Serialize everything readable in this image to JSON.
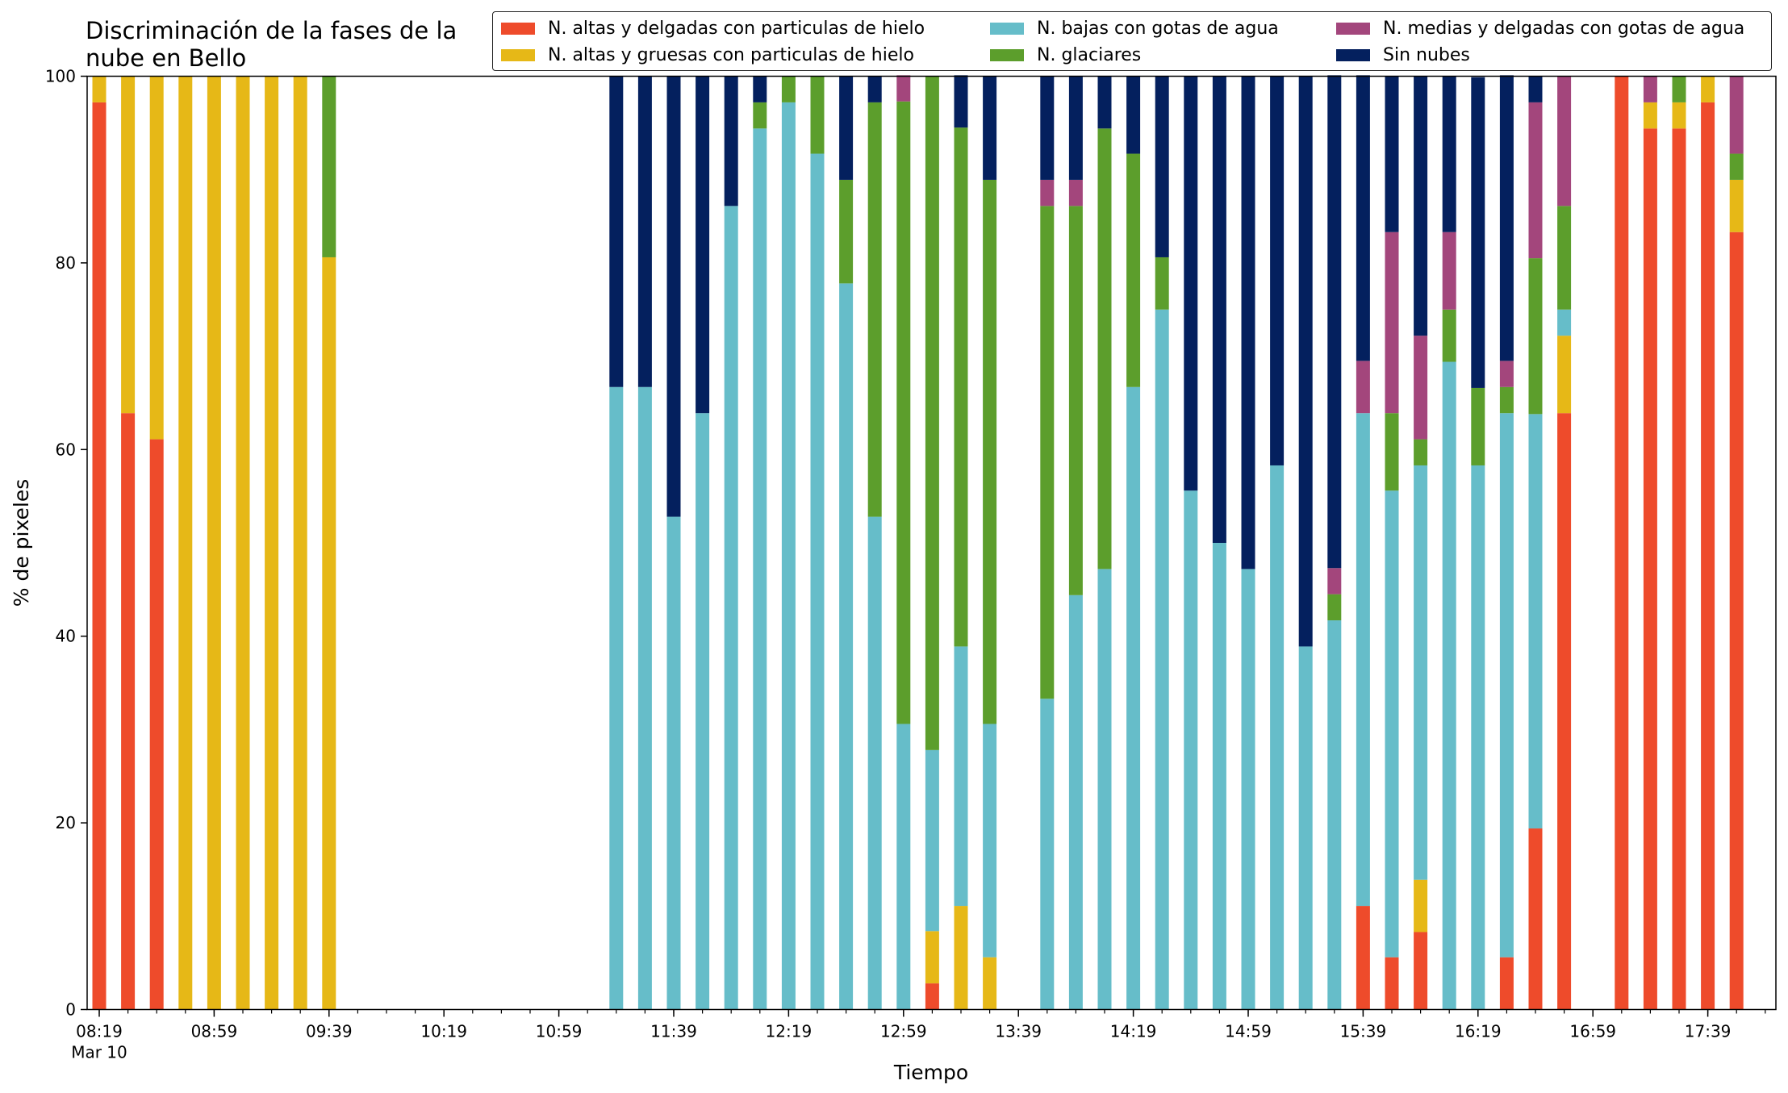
{
  "colors": {
    "hielo_delgadas": "#ee4b2b",
    "hielo_gruesas": "#e6b817",
    "bajas_agua": "#66bdc9",
    "glaciares": "#5c9e2c",
    "medias_agua": "#a3467c",
    "sin_nubes": "#04205e"
  },
  "chart_data": {
    "type": "bar",
    "stacked": true,
    "title": "Discriminación de la fases de la nube en Bello",
    "title_lines": [
      "Discriminación de la fases de la",
      "nube en Bello"
    ],
    "xlabel": "Tiempo",
    "ylabel": "% de pixeles",
    "ylim": [
      0,
      100
    ],
    "yticks": [
      "0",
      "20",
      "40",
      "60",
      "80",
      "100"
    ],
    "x_range": [
      "08:19",
      "17:59"
    ],
    "x_interval_minutes": 10,
    "x_tick_labels": [
      "08:19",
      "08:59",
      "09:39",
      "10:19",
      "10:59",
      "11:39",
      "12:19",
      "12:59",
      "13:39",
      "14:19",
      "14:59",
      "15:39",
      "16:19",
      "16:59",
      "17:39"
    ],
    "x_date_label": "Mar 10",
    "legend_position": "top-right",
    "grid": false,
    "categories": [
      "08:19",
      "08:29",
      "08:39",
      "08:49",
      "08:59",
      "09:09",
      "09:19",
      "09:29",
      "09:39",
      "09:49",
      "09:59",
      "10:09",
      "10:19",
      "10:29",
      "10:39",
      "10:49",
      "10:59",
      "11:09",
      "11:19",
      "11:29",
      "11:39",
      "11:49",
      "11:59",
      "12:09",
      "12:19",
      "12:29",
      "12:39",
      "12:49",
      "12:59",
      "13:09",
      "13:19",
      "13:29",
      "13:39",
      "13:49",
      "13:59",
      "14:09",
      "14:19",
      "14:29",
      "14:39",
      "14:49",
      "14:59",
      "15:09",
      "15:19",
      "15:29",
      "15:39",
      "15:49",
      "15:59",
      "16:09",
      "16:19",
      "16:29",
      "16:39",
      "16:49",
      "16:59",
      "17:09",
      "17:19",
      "17:29",
      "17:39",
      "17:49"
    ],
    "series": [
      {
        "name": "N. altas y delgadas con particulas de hielo",
        "color_key": "hielo_delgadas",
        "values": [
          97.2,
          63.9,
          61.1,
          0,
          0,
          0,
          0,
          0,
          0,
          0,
          0,
          0,
          0,
          0,
          0,
          0,
          0,
          0,
          0,
          0,
          0,
          0,
          0,
          0,
          0,
          0,
          0,
          0,
          0,
          2.8,
          0,
          0,
          0,
          0,
          0,
          0,
          0,
          0,
          0,
          0,
          0,
          0,
          0,
          0,
          11.1,
          5.6,
          8.3,
          0,
          0,
          5.6,
          19.4,
          63.9,
          0,
          100,
          94.4,
          94.4,
          97.2,
          83.3
        ]
      },
      {
        "name": "N. altas y gruesas con particulas de hielo",
        "color_key": "hielo_gruesas",
        "values": [
          2.8,
          36.1,
          38.9,
          100,
          100,
          100,
          100,
          100,
          80.6,
          0,
          0,
          0,
          0,
          0,
          0,
          0,
          0,
          0,
          0,
          0,
          0,
          0,
          0,
          0,
          0,
          0,
          0,
          0,
          0,
          5.6,
          11.1,
          5.6,
          0,
          0,
          0,
          0,
          0,
          0,
          0,
          0,
          0,
          0,
          0,
          0,
          0,
          0,
          5.6,
          0,
          0,
          0,
          0,
          8.3,
          0,
          0,
          2.8,
          2.8,
          2.8,
          5.6
        ]
      },
      {
        "name": "N. bajas con gotas de agua",
        "color_key": "bajas_agua",
        "values": [
          0,
          0,
          0,
          0,
          0,
          0,
          0,
          0,
          0,
          0,
          0,
          0,
          0,
          0,
          0,
          0,
          0,
          0,
          66.7,
          66.7,
          52.8,
          63.9,
          86.1,
          94.4,
          97.2,
          91.7,
          77.8,
          52.8,
          30.6,
          19.4,
          27.8,
          25.0,
          0,
          33.3,
          44.4,
          47.2,
          66.7,
          75.0,
          55.6,
          50.0,
          47.2,
          58.3,
          38.9,
          41.7,
          52.8,
          50.0,
          44.4,
          69.4,
          58.3,
          58.3,
          44.4,
          2.8,
          0,
          0,
          0,
          0,
          0,
          0
        ]
      },
      {
        "name": "N. glaciares",
        "color_key": "glaciares",
        "values": [
          0,
          0,
          0,
          0,
          0,
          0,
          0,
          0,
          19.4,
          0,
          0,
          0,
          0,
          0,
          0,
          0,
          0,
          0,
          0,
          0,
          0,
          0,
          0,
          2.8,
          2.8,
          8.3,
          11.1,
          44.4,
          66.7,
          72.2,
          55.6,
          58.3,
          0,
          52.8,
          41.7,
          47.2,
          25.0,
          5.6,
          0,
          0,
          0,
          0,
          0,
          2.8,
          0,
          8.3,
          2.8,
          5.6,
          8.3,
          2.8,
          16.7,
          11.1,
          0,
          0,
          0,
          2.8,
          0,
          2.8
        ]
      },
      {
        "name": "N. medias y delgadas con gotas de agua",
        "color_key": "medias_agua",
        "values": [
          0,
          0,
          0,
          0,
          0,
          0,
          0,
          0,
          0,
          0,
          0,
          0,
          0,
          0,
          0,
          0,
          0,
          0,
          0,
          0,
          0,
          0,
          0,
          0,
          0,
          0,
          0,
          0,
          2.8,
          0,
          0,
          0,
          0,
          2.8,
          2.8,
          0,
          0,
          0,
          0,
          0,
          0,
          0,
          0,
          2.8,
          5.6,
          19.4,
          11.1,
          8.3,
          0,
          2.8,
          16.7,
          13.9,
          0,
          0,
          2.8,
          0,
          0,
          8.3
        ]
      },
      {
        "name": "Sin nubes",
        "color_key": "sin_nubes",
        "values": [
          0,
          0,
          0,
          0,
          0,
          0,
          0,
          0,
          0,
          0,
          0,
          0,
          0,
          0,
          0,
          0,
          0,
          0,
          33.3,
          33.3,
          47.2,
          36.1,
          13.9,
          2.8,
          0,
          0,
          11.1,
          2.8,
          0,
          0,
          5.6,
          11.1,
          0,
          11.1,
          11.1,
          5.6,
          8.3,
          19.4,
          44.4,
          50.0,
          52.8,
          41.7,
          61.1,
          52.8,
          30.6,
          16.7,
          27.8,
          16.7,
          33.3,
          30.6,
          2.8,
          0,
          0,
          0,
          0,
          0,
          0,
          0
        ]
      }
    ]
  }
}
